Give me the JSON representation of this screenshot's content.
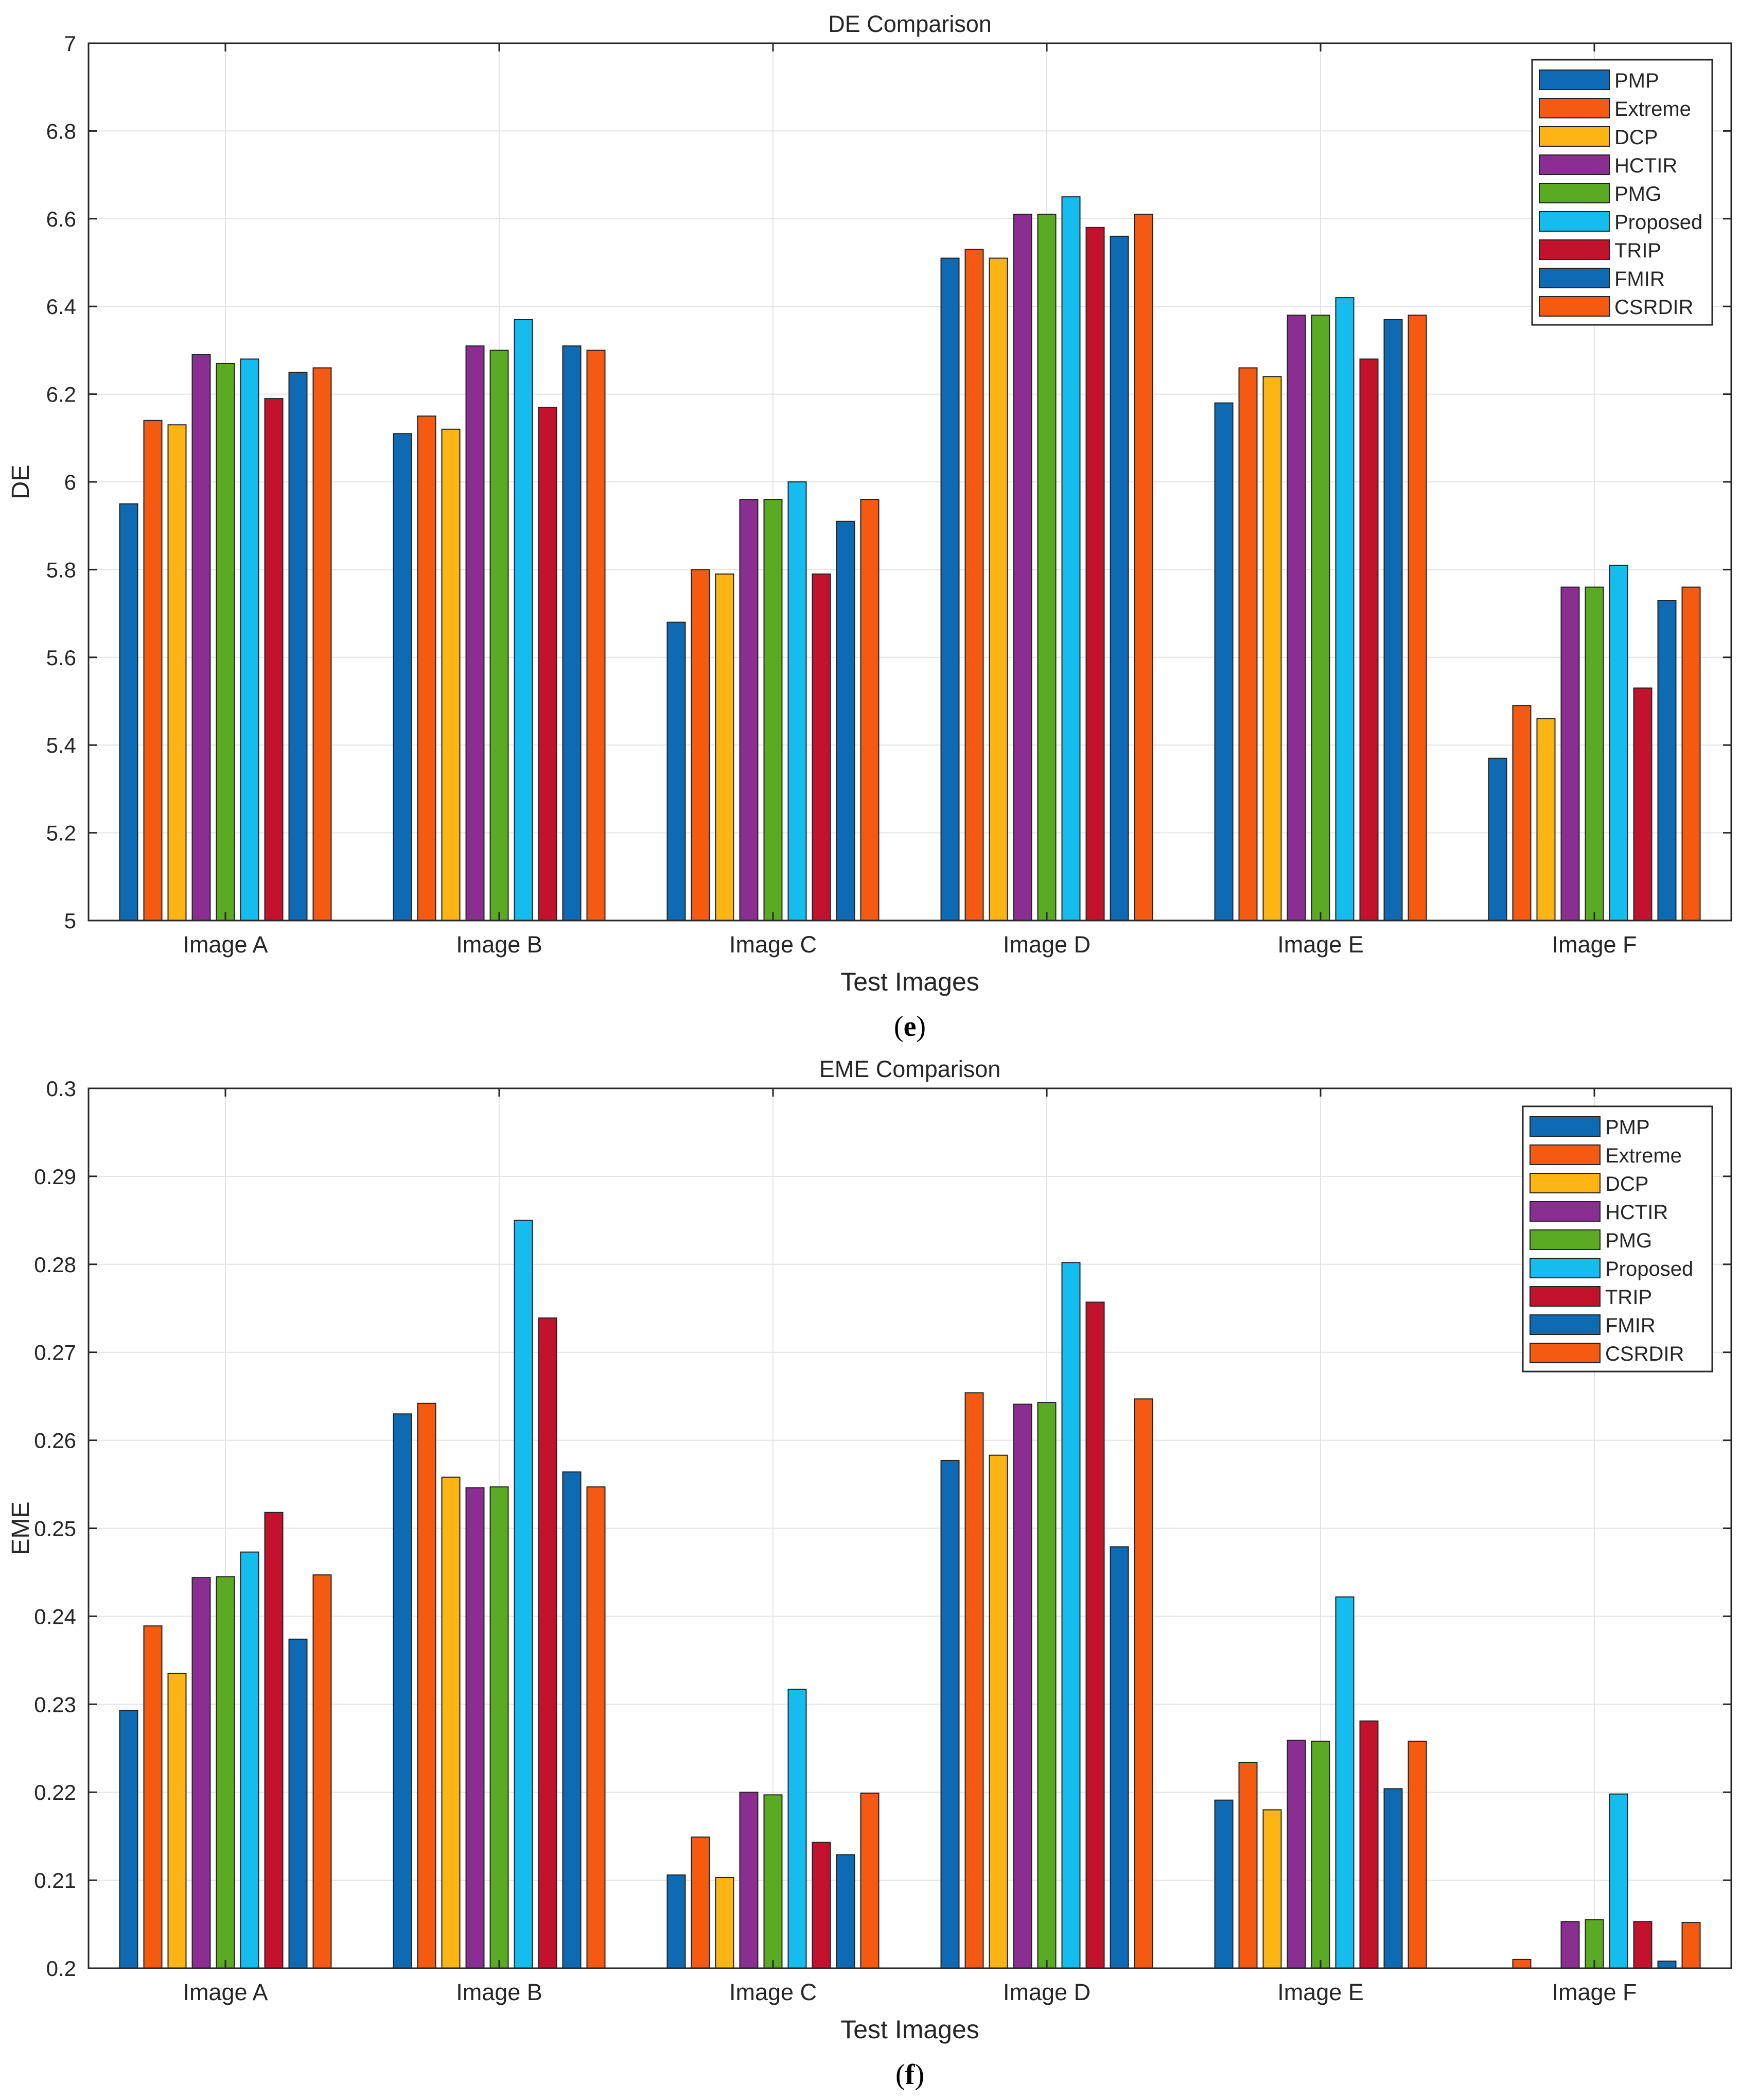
{
  "colors": {
    "PMP": "#0e6bb3",
    "Extreme": "#f45a12",
    "DCP": "#fdb515",
    "HCTIR": "#8a2e91",
    "PMG": "#5aab23",
    "Proposed": "#15bdee",
    "TRIP": "#c3122d",
    "FMIR": "#0e6bb3",
    "CSRDIR": "#f45a12"
  },
  "chart_data": [
    {
      "panel": "e",
      "caption": "e",
      "type": "bar",
      "title": "DE Comparison",
      "xlabel": "Test Images",
      "ylabel": "DE",
      "ylim": [
        5,
        7
      ],
      "yticks": [
        5,
        5.2,
        5.4,
        5.6,
        5.8,
        6,
        6.2,
        6.4,
        6.6,
        6.8,
        7
      ],
      "ytick_labels": [
        "5",
        "5.2",
        "5.4",
        "5.6",
        "5.8",
        "6",
        "6.2",
        "6.4",
        "6.6",
        "6.8",
        "7"
      ],
      "grid": true,
      "legend_position": "top-right",
      "categories": [
        "Image A",
        "Image B",
        "Image C",
        "Image D",
        "Image E",
        "Image F"
      ],
      "series": [
        {
          "name": "PMP",
          "values": [
            5.95,
            6.11,
            5.68,
            6.51,
            6.18,
            5.37
          ]
        },
        {
          "name": "Extreme",
          "values": [
            6.14,
            6.15,
            5.8,
            6.53,
            6.26,
            5.49
          ]
        },
        {
          "name": "DCP",
          "values": [
            6.13,
            6.12,
            5.79,
            6.51,
            6.24,
            5.46
          ]
        },
        {
          "name": "HCTIR",
          "values": [
            6.29,
            6.31,
            5.96,
            6.61,
            6.38,
            5.76
          ]
        },
        {
          "name": "PMG",
          "values": [
            6.27,
            6.3,
            5.96,
            6.61,
            6.38,
            5.76
          ]
        },
        {
          "name": "Proposed",
          "values": [
            6.28,
            6.37,
            6.0,
            6.65,
            6.42,
            5.81
          ]
        },
        {
          "name": "TRIP",
          "values": [
            6.19,
            6.17,
            5.79,
            6.58,
            6.28,
            5.53
          ]
        },
        {
          "name": "FMIR",
          "values": [
            6.25,
            6.31,
            5.91,
            6.56,
            6.37,
            5.73
          ]
        },
        {
          "name": "CSRDIR",
          "values": [
            6.26,
            6.3,
            5.96,
            6.61,
            6.38,
            5.76
          ]
        }
      ]
    },
    {
      "panel": "f",
      "caption": "f",
      "type": "bar",
      "title": "EME Comparison",
      "xlabel": "Test Images",
      "ylabel": "EME",
      "ylim": [
        0.2,
        0.3
      ],
      "yticks": [
        0.2,
        0.21,
        0.22,
        0.23,
        0.24,
        0.25,
        0.26,
        0.27,
        0.28,
        0.29,
        0.3
      ],
      "ytick_labels": [
        "0.2",
        "0.21",
        "0.22",
        "0.23",
        "0.24",
        "0.25",
        "0.26",
        "0.27",
        "0.28",
        "0.29",
        "0.3"
      ],
      "grid": true,
      "legend_position": "top-right",
      "categories": [
        "Image A",
        "Image B",
        "Image C",
        "Image D",
        "Image E",
        "Image F"
      ],
      "series": [
        {
          "name": "PMP",
          "values": [
            0.2293,
            0.263,
            0.2106,
            0.2577,
            0.2191,
            0.2
          ]
        },
        {
          "name": "Extreme",
          "values": [
            0.2389,
            0.2642,
            0.2149,
            0.2654,
            0.2234,
            0.201
          ]
        },
        {
          "name": "DCP",
          "values": [
            0.2335,
            0.2558,
            0.2103,
            0.2583,
            0.218,
            0.2
          ]
        },
        {
          "name": "HCTIR",
          "values": [
            0.2444,
            0.2546,
            0.22,
            0.2641,
            0.2259,
            0.2053
          ]
        },
        {
          "name": "PMG",
          "values": [
            0.2445,
            0.2547,
            0.2197,
            0.2643,
            0.2258,
            0.2055
          ]
        },
        {
          "name": "Proposed",
          "values": [
            0.2473,
            0.285,
            0.2317,
            0.2802,
            0.2422,
            0.2198
          ]
        },
        {
          "name": "TRIP",
          "values": [
            0.2518,
            0.2739,
            0.2143,
            0.2757,
            0.2281,
            0.2053
          ]
        },
        {
          "name": "FMIR",
          "values": [
            0.2374,
            0.2564,
            0.2129,
            0.2479,
            0.2204,
            0.2008
          ]
        },
        {
          "name": "CSRDIR",
          "values": [
            0.2447,
            0.2547,
            0.2199,
            0.2647,
            0.2258,
            0.2052
          ]
        }
      ]
    }
  ]
}
